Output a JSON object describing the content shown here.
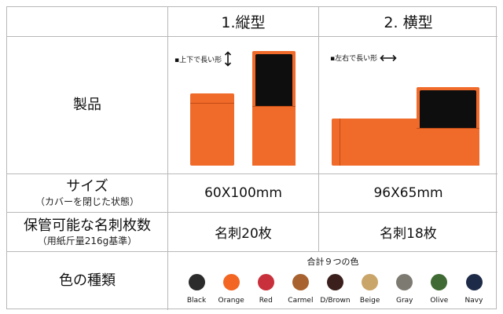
{
  "header": {
    "col1": "1.縦型",
    "col2": "2. 横型"
  },
  "rows": {
    "product": {
      "label": "製品",
      "note1": "▪上下で長い形",
      "note2": "▪左右で長い形"
    },
    "size": {
      "label": "サイズ",
      "sub": "（カバーを閉じた状態）",
      "v1": "60X100mm",
      "v2": "96X65mm"
    },
    "capacity": {
      "label": "保管可能な名刺枚数",
      "sub": "（用紙斤量216g基準）",
      "v1": "名刺20枚",
      "v2": "名刺18枚"
    },
    "colors": {
      "label": "色の種類",
      "title": "合計９つの色"
    }
  },
  "product_color": "#f06a2a",
  "swatches": [
    {
      "name": "Black",
      "hex": "#2b2b2b"
    },
    {
      "name": "Orange",
      "hex": "#f26522"
    },
    {
      "name": "Red",
      "hex": "#c8313b"
    },
    {
      "name": "Carmel",
      "hex": "#a8622f"
    },
    {
      "name": "D/Brown",
      "hex": "#3a1f1c"
    },
    {
      "name": "Beige",
      "hex": "#c9a56a"
    },
    {
      "name": "Gray",
      "hex": "#7d7a72"
    },
    {
      "name": "Olive",
      "hex": "#3f6a33"
    },
    {
      "name": "Navy",
      "hex": "#1d2b48"
    }
  ]
}
